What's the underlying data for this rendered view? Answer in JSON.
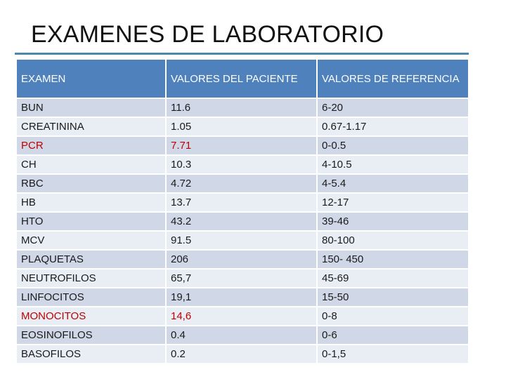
{
  "title": "EXAMENES DE LABORATORIO",
  "colors": {
    "header_bg": "#4f81bd",
    "rule": "#4a8aa8",
    "row_dark": "#d0d8e8",
    "row_light": "#e9edf4",
    "alert_text": "#c00000"
  },
  "table": {
    "headers": [
      "EXAMEN",
      "VALORES DEL PACIENTE",
      "VALORES DE REFERENCIA"
    ],
    "rows": [
      {
        "exam": "BUN",
        "value": "11.6",
        "reference": "6-20",
        "alert": false
      },
      {
        "exam": "CREATININA",
        "value": "1.05",
        "reference": "0.67-1.17",
        "alert": false
      },
      {
        "exam": "PCR",
        "value": "7.71",
        "reference": "0-0.5",
        "alert": true
      },
      {
        "exam": "CH",
        "value": "10.3",
        "reference": "4-10.5",
        "alert": false
      },
      {
        "exam": "RBC",
        "value": "4.72",
        "reference": "4-5.4",
        "alert": false
      },
      {
        "exam": "HB",
        "value": "13.7",
        "reference": "12-17",
        "alert": false
      },
      {
        "exam": "HTO",
        "value": "43.2",
        "reference": "39-46",
        "alert": false
      },
      {
        "exam": "MCV",
        "value": "91.5",
        "reference": "80-100",
        "alert": false
      },
      {
        "exam": "PLAQUETAS",
        "value": "206",
        "reference": "150- 450",
        "alert": false
      },
      {
        "exam": "NEUTROFILOS",
        "value": "65,7",
        "reference": "45-69",
        "alert": false
      },
      {
        "exam": "LINFOCITOS",
        "value": "19,1",
        "reference": "15-50",
        "alert": false
      },
      {
        "exam": "MONOCITOS",
        "value": "14,6",
        "reference": "0-8",
        "alert": true
      },
      {
        "exam": "EOSINOFILOS",
        "value": "0.4",
        "reference": "0-6",
        "alert": false
      },
      {
        "exam": "BASOFILOS",
        "value": "0.2",
        "reference": "0-1,5",
        "alert": false
      }
    ]
  }
}
